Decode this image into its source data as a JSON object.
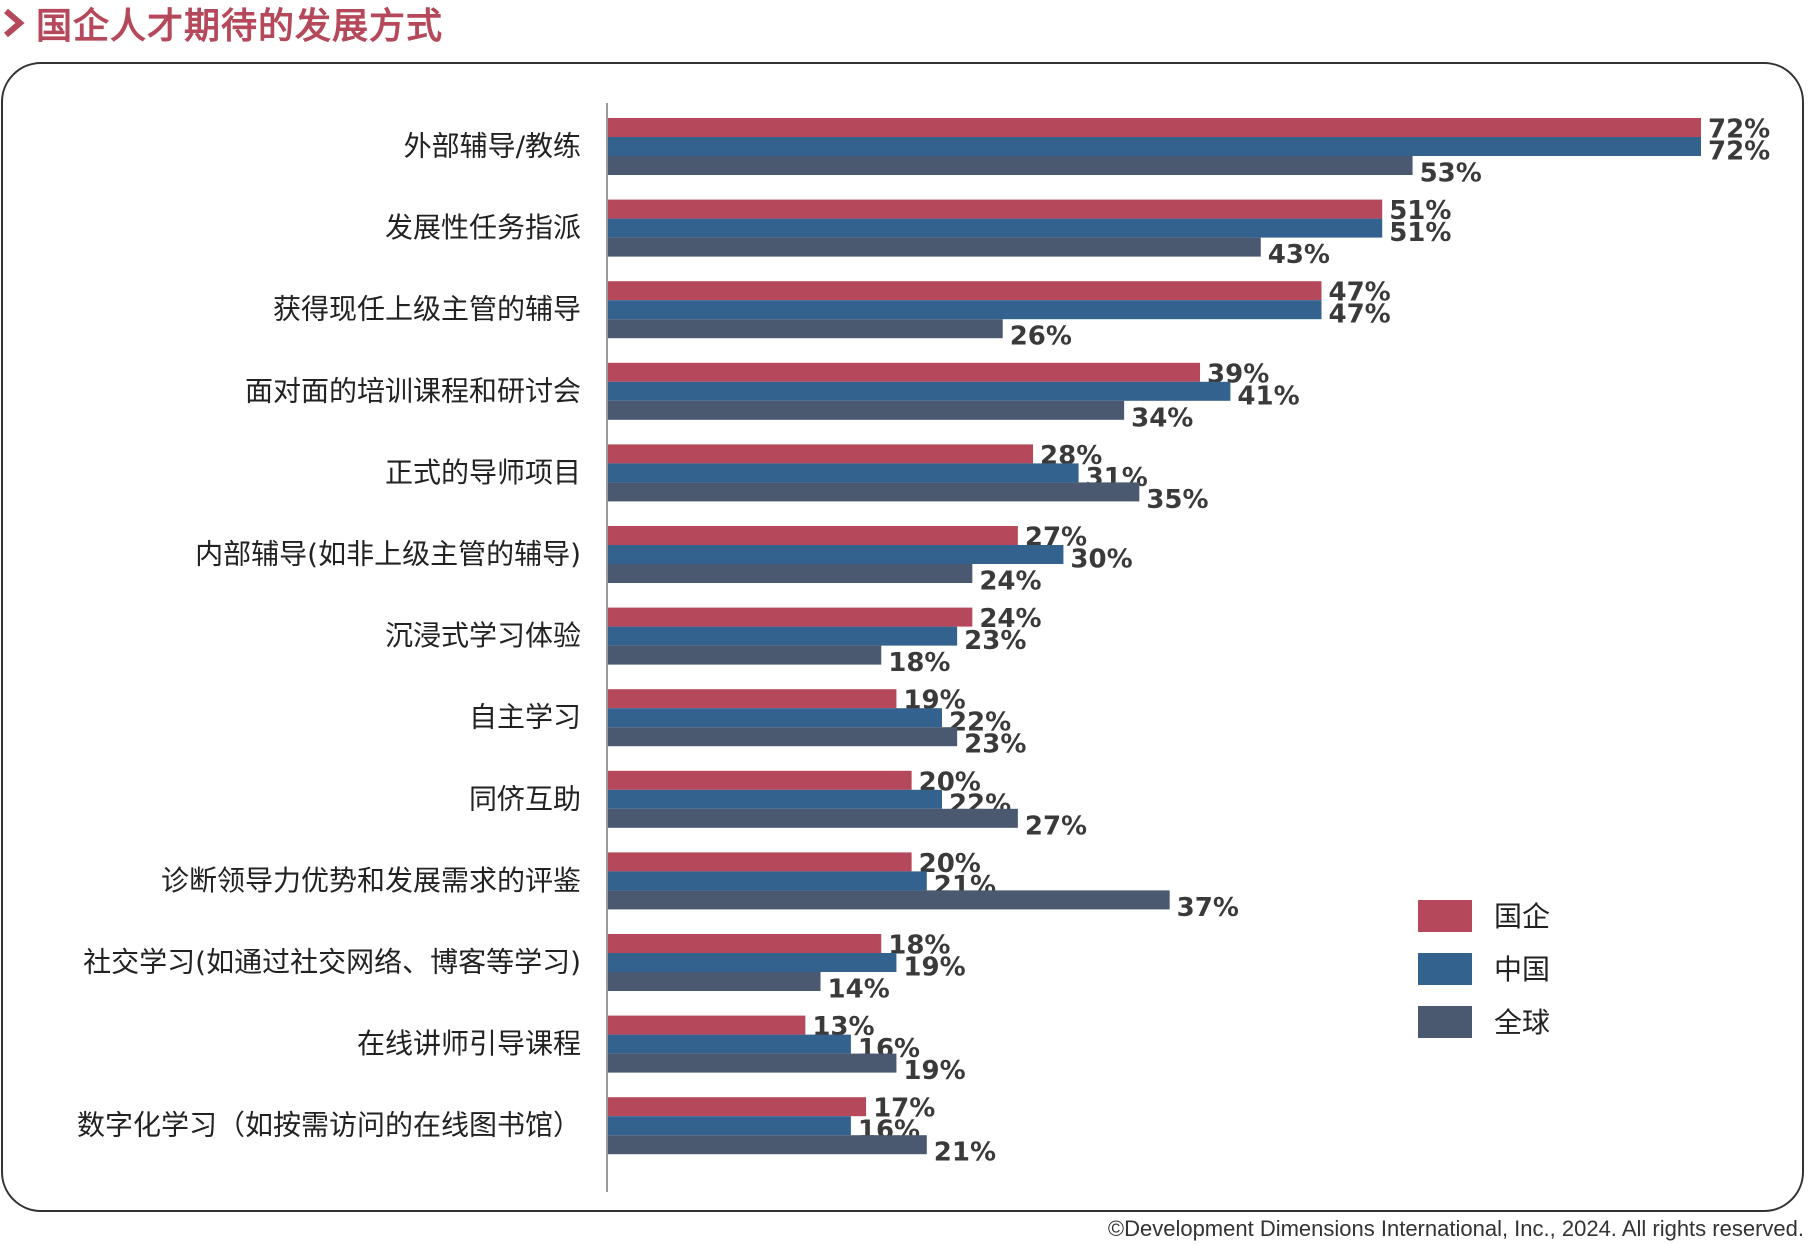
{
  "header": {
    "title": "国企人才期待的发展方式"
  },
  "footer": {
    "copyright": "©Development Dimensions International, Inc., 2024. All rights reserved."
  },
  "colors": {
    "title": "#b5485a",
    "soe": "#b5485a",
    "china": "#33628f",
    "global": "#4a5870",
    "axis": "#999999",
    "frame": "#333333"
  },
  "chart_data": {
    "type": "bar",
    "orientation": "horizontal",
    "title": "国企人才期待的发展方式",
    "value_suffix": "%",
    "legend_position": "right",
    "categories": [
      "外部辅导/教练",
      "发展性任务指派",
      "获得现任上级主管的辅导",
      "面对面的培训课程和研讨会",
      "正式的导师项目",
      "内部辅导(如非上级主管的辅导)",
      "沉浸式学习体验",
      "自主学习",
      "同侪互助",
      "诊断领导力优势和发展需求的评鉴",
      "社交学习(如通过社交网络、博客等学习)",
      "在线讲师引导课程",
      "数字化学习（如按需访问的在线图书馆）"
    ],
    "series": [
      {
        "name": "国企",
        "color": "#b5485a",
        "values": [
          72,
          51,
          47,
          39,
          28,
          27,
          24,
          19,
          20,
          20,
          18,
          13,
          17
        ]
      },
      {
        "name": "中国",
        "color": "#33628f",
        "values": [
          72,
          51,
          47,
          41,
          31,
          30,
          23,
          22,
          22,
          21,
          19,
          16,
          16
        ]
      },
      {
        "name": "全球",
        "color": "#4a5870",
        "values": [
          53,
          43,
          26,
          34,
          35,
          24,
          18,
          23,
          27,
          37,
          14,
          19,
          21
        ]
      }
    ],
    "xlim": [
      0,
      72
    ]
  }
}
